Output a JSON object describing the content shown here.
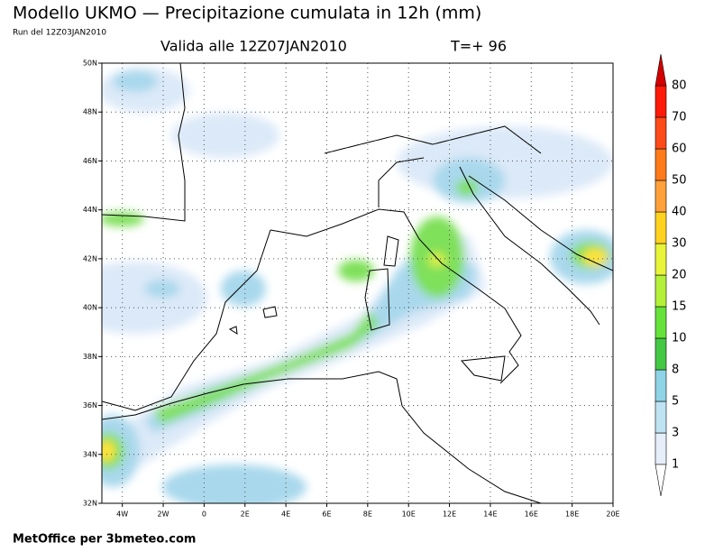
{
  "header": {
    "title": "Modello UKMO — Precipitazione cumulata in 12h (mm)",
    "run": "Run del 12Z03JAN2010",
    "valid": "Valida alle 12Z07JAN2010",
    "lead": "T=+ 96"
  },
  "map": {
    "lat_labels": [
      "32N",
      "34N",
      "36N",
      "38N",
      "40N",
      "42N",
      "44N",
      "46N",
      "48N",
      "50N"
    ],
    "lon_labels": [
      "4W",
      "2W",
      "0",
      "2E",
      "4E",
      "6E",
      "8E",
      "10E",
      "12E",
      "14E",
      "16E",
      "18E",
      "20E"
    ]
  },
  "colorbar": {
    "levels": [
      "1",
      "3",
      "5",
      "8",
      "10",
      "15",
      "20",
      "30",
      "40",
      "50",
      "60",
      "70",
      "80"
    ]
  },
  "footer": "MetOffice per 3bmeteo.com"
}
